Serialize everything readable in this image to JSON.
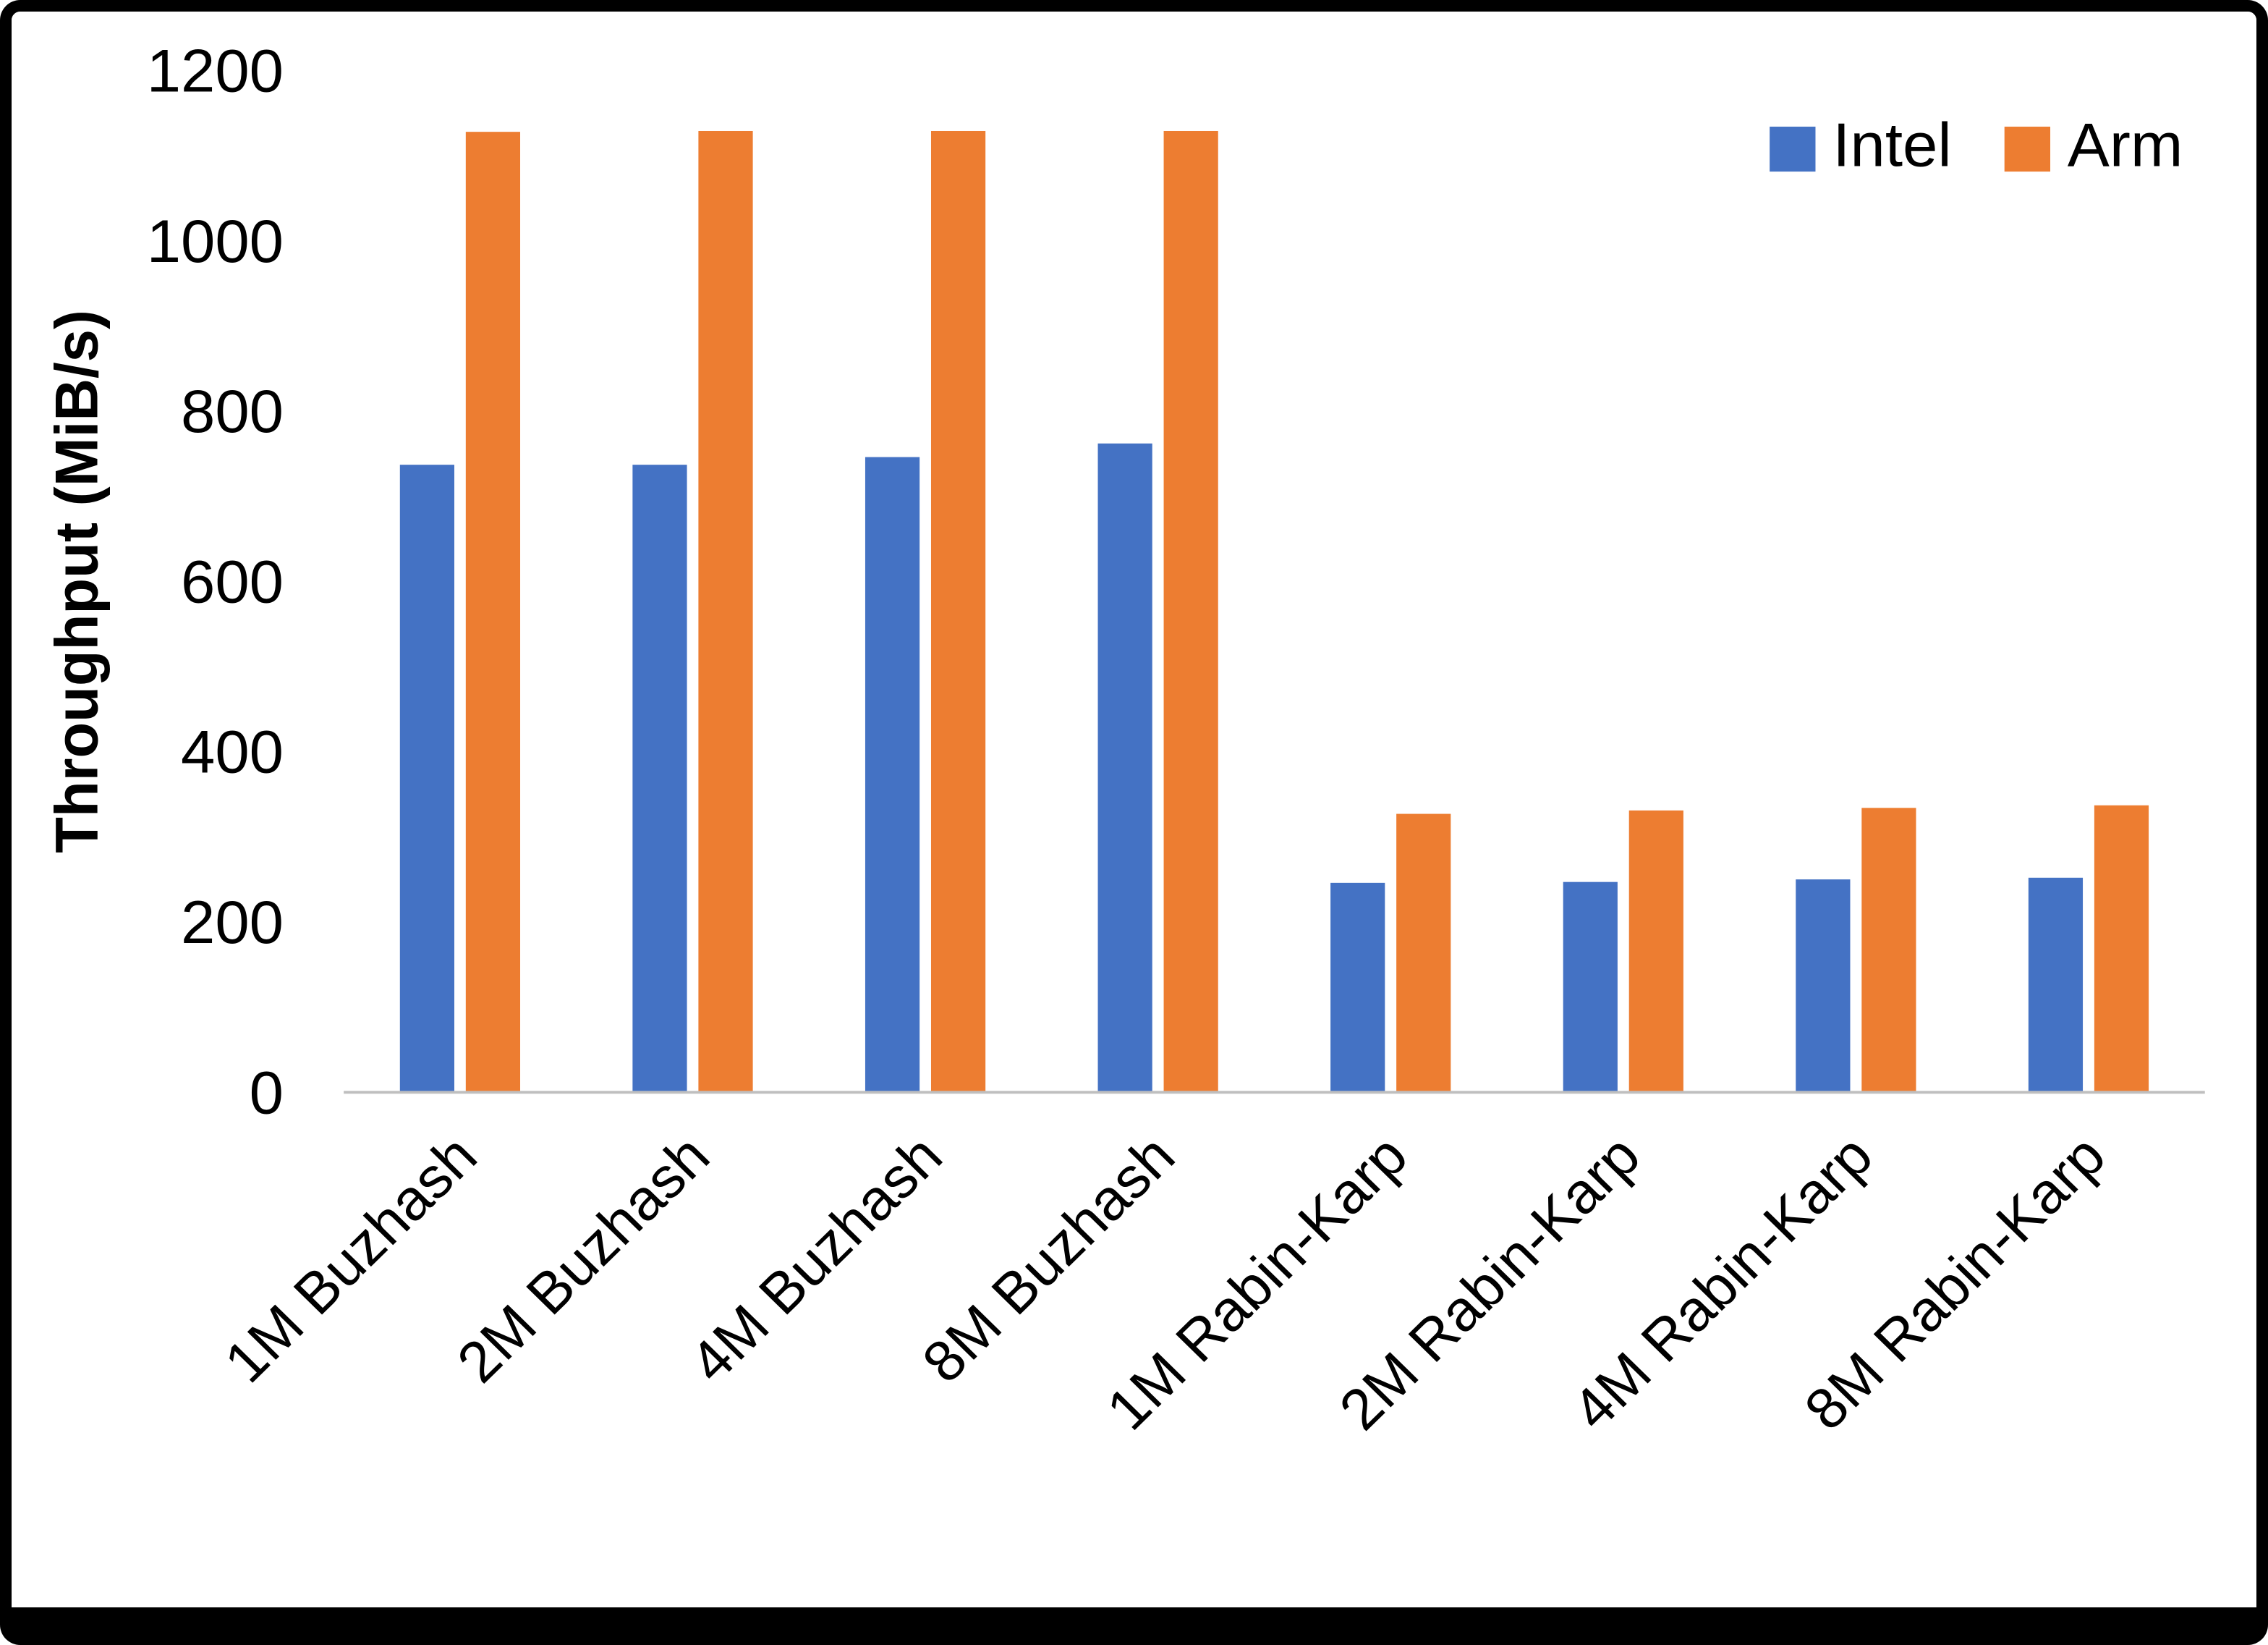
{
  "chart_data": {
    "type": "bar",
    "title": "",
    "xlabel": "",
    "ylabel": "Throughput (MiB/s)",
    "ylim": [
      0,
      1200
    ],
    "yticks": [
      0,
      200,
      400,
      600,
      800,
      1000,
      1200
    ],
    "grid": false,
    "legend_position": "top-right",
    "categories": [
      "1M Buzhash",
      "2M Buzhash",
      "4M Buzhash",
      "8M Buzhash",
      "1M Rabin-Karp",
      "2M Rabin-Karp",
      "4M Rabin-Karp",
      "8M Rabin-Karp"
    ],
    "series": [
      {
        "name": "Intel",
        "color": "#4472C4",
        "values": [
          737,
          737,
          746,
          762,
          246,
          247,
          250,
          252
        ]
      },
      {
        "name": "Arm",
        "color": "#ED7D31",
        "values": [
          1128,
          1129,
          1129,
          1129,
          327,
          331,
          334,
          337
        ]
      }
    ],
    "colors": {
      "axis_line": "#BFBFBF",
      "text": "#000000",
      "background": "#FFFFFF",
      "border": "#000000"
    }
  }
}
